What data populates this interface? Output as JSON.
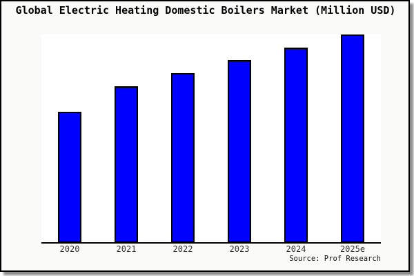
{
  "figure": {
    "title": "Global Electric Heating Domestic Boilers Market (Million USD)",
    "source_note": "Source: Prof Research",
    "background_color": "#fafaf8",
    "plot_background_color": "#ffffff",
    "frame_border_color": "#000000"
  },
  "chart_data": {
    "type": "bar",
    "title": "Global Electric Heating Domestic Boilers Market (Million USD)",
    "categories": [
      "2020",
      "2021",
      "2022",
      "2023",
      "2024",
      "2025e"
    ],
    "values": [
      62.8,
      75.1,
      81.4,
      87.7,
      93.7,
      100.0
    ],
    "values_note": "y-axis has no tick labels or gridlines; values estimated from bar heights, normalized so the 2025e bar = 100",
    "xlabel": "",
    "ylabel": "",
    "ylim": [
      0,
      100
    ],
    "grid": false,
    "legend": false,
    "bar_fill_color": "#0000ff",
    "bar_border_color": "#000000",
    "axis_line_color": "#000000",
    "annotation": "Source: Prof Research"
  }
}
